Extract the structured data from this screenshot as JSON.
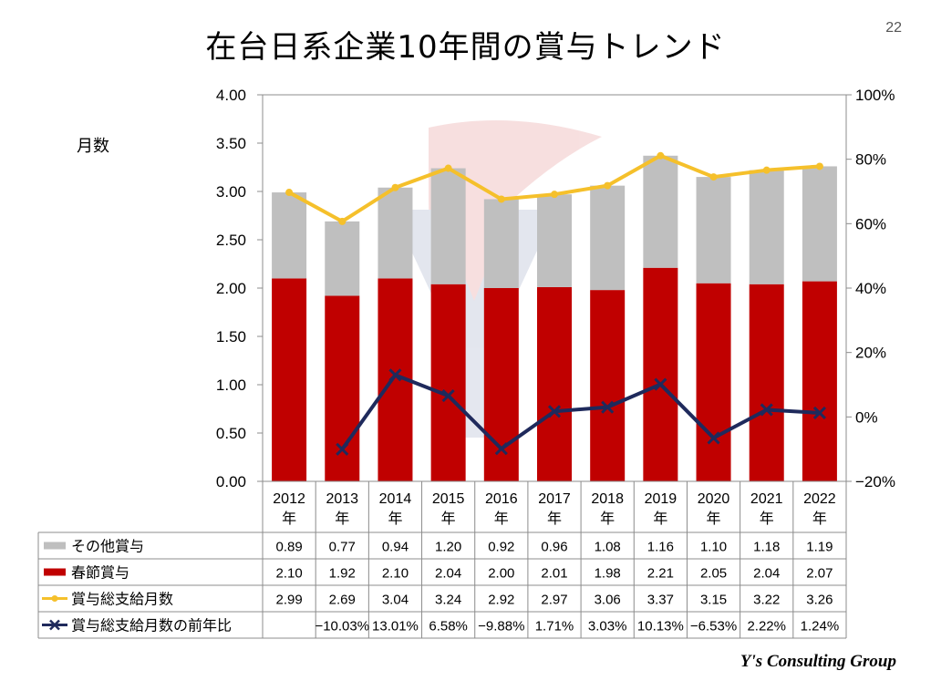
{
  "page": {
    "title": "在台日系企業10年間の賞与トレンド",
    "page_number": "22",
    "footer": "Y's Consulting Group"
  },
  "chart_data": {
    "type": "bar",
    "stacked": true,
    "title": "在台日系企業10年間の賞与トレンド",
    "ylabel": "月数",
    "categories": [
      "2012年",
      "2013年",
      "2014年",
      "2015年",
      "2016年",
      "2017年",
      "2018年",
      "2019年",
      "2020年",
      "2021年",
      "2022年"
    ],
    "ylim": [
      0,
      4.0
    ],
    "yticks": [
      "0.00",
      "0.50",
      "1.00",
      "1.50",
      "2.00",
      "2.50",
      "3.00",
      "3.50",
      "4.00"
    ],
    "y2lim": [
      -20,
      100
    ],
    "y2ticks": [
      "−20%",
      "0%",
      "20%",
      "40%",
      "60%",
      "80%",
      "100%"
    ],
    "grid": false,
    "series": [
      {
        "name": "その他賞与",
        "kind": "bar",
        "color": "#bfbfbf",
        "values": [
          0.89,
          0.77,
          0.94,
          1.2,
          0.92,
          0.96,
          1.08,
          1.16,
          1.1,
          1.18,
          1.19
        ],
        "labels": [
          "0.89",
          "0.77",
          "0.94",
          "1.20",
          "0.92",
          "0.96",
          "1.08",
          "1.16",
          "1.10",
          "1.18",
          "1.19"
        ]
      },
      {
        "name": "春節賞与",
        "kind": "bar",
        "color": "#c00000",
        "values": [
          2.1,
          1.92,
          2.1,
          2.04,
          2.0,
          2.01,
          1.98,
          2.21,
          2.05,
          2.04,
          2.07
        ],
        "labels": [
          "2.10",
          "1.92",
          "2.10",
          "2.04",
          "2.00",
          "2.01",
          "1.98",
          "2.21",
          "2.05",
          "2.04",
          "2.07"
        ]
      },
      {
        "name": "賞与総支給月数",
        "kind": "line",
        "color": "#f5c02b",
        "values": [
          2.99,
          2.69,
          3.04,
          3.24,
          2.92,
          2.97,
          3.06,
          3.37,
          3.15,
          3.22,
          3.26
        ],
        "labels": [
          "2.99",
          "2.69",
          "3.04",
          "3.24",
          "2.92",
          "2.97",
          "3.06",
          "3.37",
          "3.15",
          "3.22",
          "3.26"
        ]
      },
      {
        "name": "賞与総支給月数の前年比",
        "kind": "line",
        "axis": "right",
        "color": "#1f2a5c",
        "values": [
          null,
          -10.03,
          13.01,
          6.58,
          -9.88,
          1.71,
          3.03,
          10.13,
          -6.53,
          2.22,
          1.24
        ],
        "labels": [
          "",
          "−10.03%",
          "13.01%",
          "6.58%",
          "−9.88%",
          "1.71%",
          "3.03%",
          "10.13%",
          "−6.53%",
          "2.22%",
          "1.24%"
        ]
      }
    ],
    "legend": "data-table"
  }
}
